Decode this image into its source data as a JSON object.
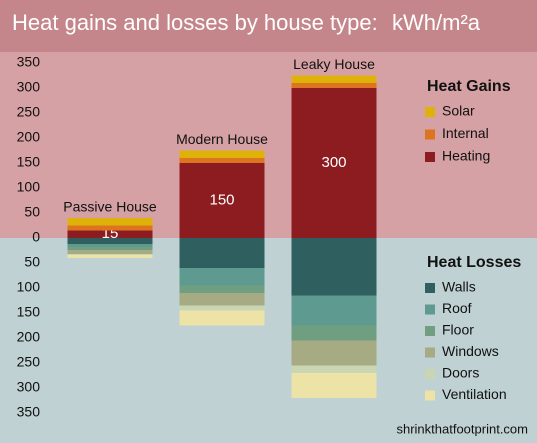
{
  "chart_data": {
    "type": "bar",
    "title": "Heat gains and losses by house type:",
    "unit": "kWh/m²a",
    "source": "shrinkthatfootprint.com",
    "categories": [
      "Passive House",
      "Modern House",
      "Leaky House"
    ],
    "legend_titles": [
      "Heat Gains",
      "Heat Losses"
    ],
    "series": [
      {
        "name": "Solar",
        "color": "#dfb20a",
        "legend_group": 0,
        "values": [
          15,
          15,
          15
        ]
      },
      {
        "name": "Internal",
        "color": "#dd7420",
        "legend_group": 0,
        "values": [
          10,
          10,
          10
        ]
      },
      {
        "name": "Heating",
        "color": "#8c1c20",
        "legend_group": 0,
        "show_values": true,
        "values": [
          15,
          150,
          300
        ]
      },
      {
        "name": "Walls",
        "color": "#2f5f5f",
        "legend_group": 1,
        "values": [
          -12,
          -60,
          -115
        ]
      },
      {
        "name": "Roof",
        "color": "#5e9a8f",
        "legend_group": 1,
        "values": [
          -6,
          -35,
          -60
        ]
      },
      {
        "name": "Floor",
        "color": "#6f9f80",
        "legend_group": 1,
        "values": [
          -6,
          -15,
          -30
        ]
      },
      {
        "name": "Windows",
        "color": "#a6ab84",
        "legend_group": 1,
        "values": [
          -8,
          -25,
          -50
        ]
      },
      {
        "name": "Doors",
        "color": "#c9d6b3",
        "legend_group": 1,
        "values": [
          -2,
          -10,
          -15
        ]
      },
      {
        "name": "Ventilation",
        "color": "#eee3a6",
        "legend_group": 1,
        "values": [
          -6,
          -30,
          -50
        ]
      }
    ],
    "ylim": [
      -350,
      350
    ],
    "yticks": [
      {
        "value": -350,
        "label": "350"
      },
      {
        "value": -300,
        "label": "300"
      },
      {
        "value": -250,
        "label": "250"
      },
      {
        "value": -200,
        "label": "200"
      },
      {
        "value": -150,
        "label": "150"
      },
      {
        "value": -100,
        "label": "100"
      },
      {
        "value": -50,
        "label": "50"
      },
      0,
      50,
      100,
      150,
      200,
      250,
      300,
      350
    ]
  }
}
